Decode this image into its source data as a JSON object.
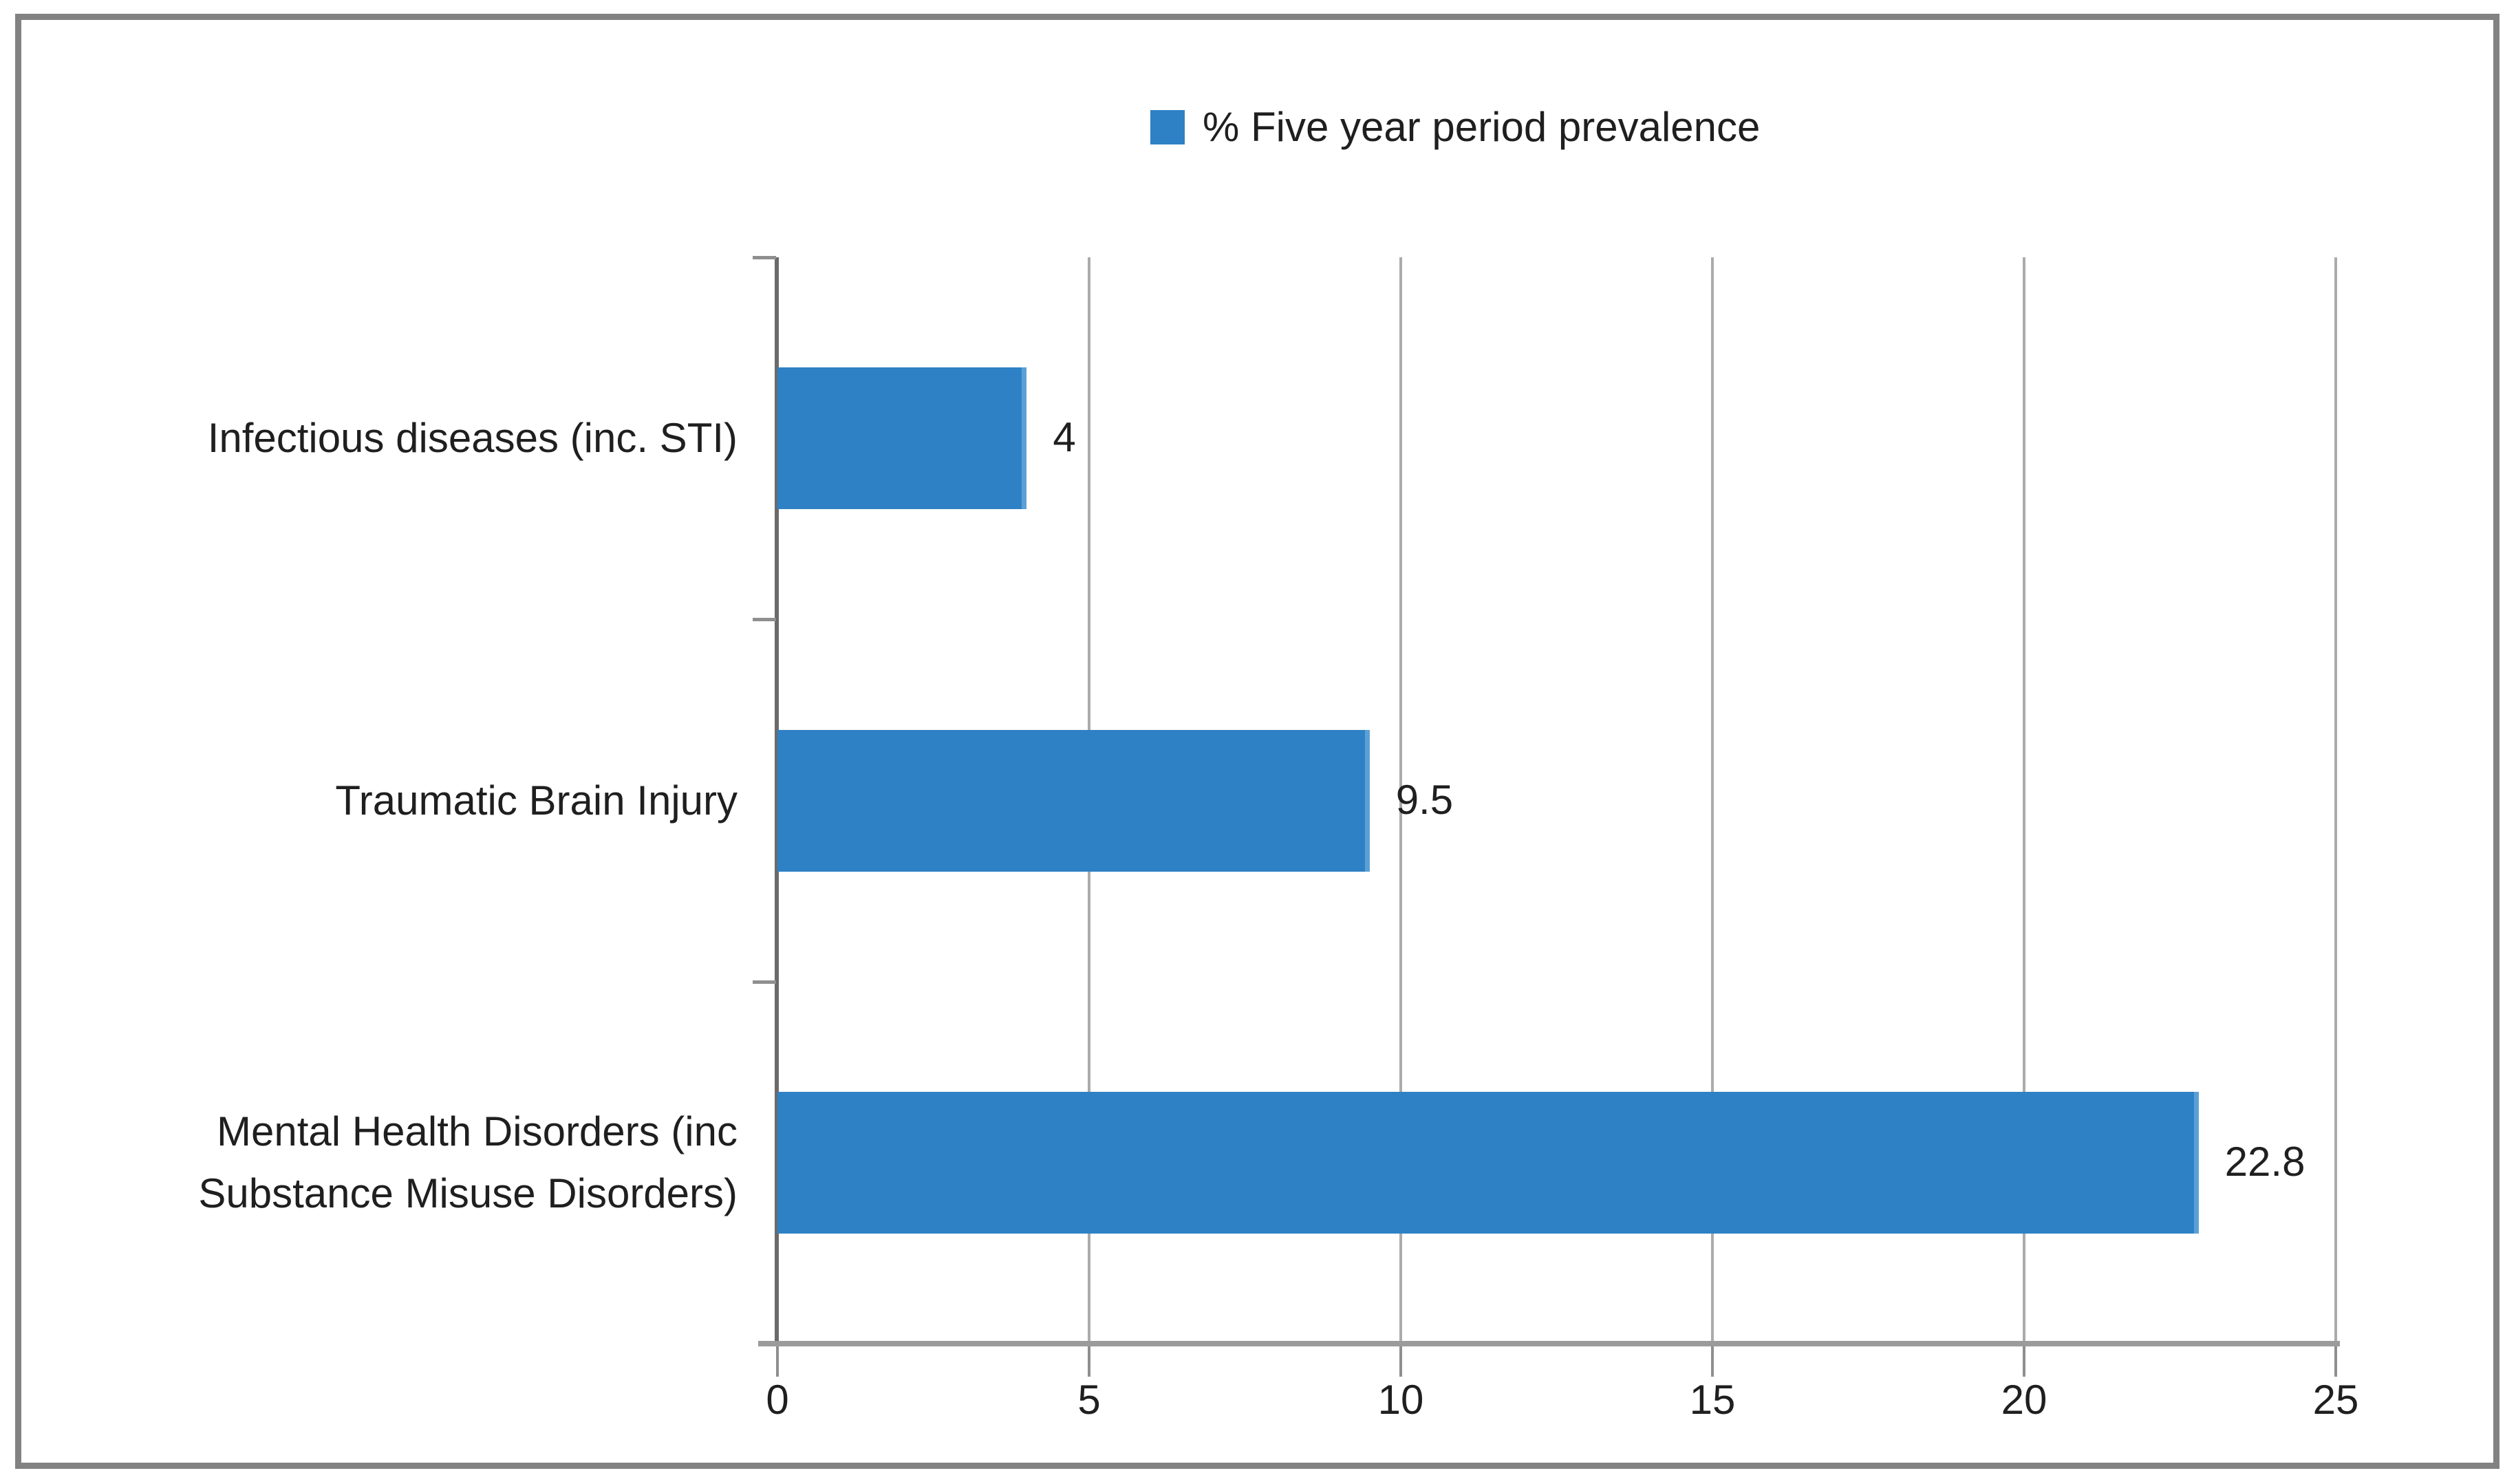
{
  "frame": {
    "border_color": "#828282"
  },
  "legend": {
    "label": "% Five year period prevalence",
    "swatch_color": "#2E81C4",
    "position": "top"
  },
  "chart_data": {
    "type": "bar",
    "orientation": "horizontal",
    "title": "",
    "xlabel": "",
    "ylabel": "",
    "categories": [
      "Infectious diseases (inc. STI)",
      "Traumatic Brain Injury",
      "Mental Health Disorders (inc Substance Misuse Disorders)"
    ],
    "category_label_lines": [
      [
        "Infectious diseases (inc. STI)"
      ],
      [
        "Traumatic Brain Injury"
      ],
      [
        "Mental Health Disorders (inc",
        "Substance Misuse Disorders)"
      ]
    ],
    "series": [
      {
        "name": "% Five year period prevalence",
        "values": [
          4,
          9.5,
          22.8
        ],
        "color": "#2E81C4",
        "edge_color": "#5AA0D6"
      }
    ],
    "data_labels": [
      "4",
      "9.5",
      "22.8"
    ],
    "xlim": [
      0,
      25
    ],
    "x_ticks": [
      "0",
      "5",
      "10",
      "15",
      "20",
      "25"
    ],
    "grid": true,
    "legend_position": "top",
    "axis_colors": {
      "gridline": "#ABABAB",
      "axis_line": "#9B9B9B",
      "category_axis": "#6A6A6A",
      "tick_mark": "#8F8F8F",
      "text": "#1F1F1F"
    }
  }
}
